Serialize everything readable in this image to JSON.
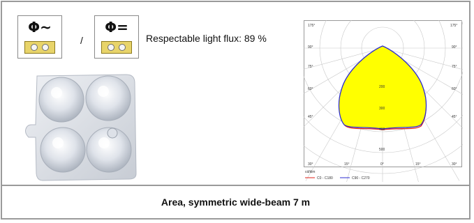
{
  "badges": [
    {
      "symbol": "Φ~",
      "icon": "ac-power-socket-icon"
    },
    {
      "symbol": "Φ=",
      "icon": "dc-power-socket-icon"
    }
  ],
  "separator": "/",
  "flux_text": "Respectable light flux: 89 %",
  "footer_label": "Area, symmetric wide-beam 7 m",
  "colors": {
    "fill": "#ffff00",
    "c0": "#e32219",
    "c90": "#2b2bd0",
    "border": "#9a9a9a"
  },
  "chart_data": {
    "type": "polar",
    "angle_labels_top": [
      "175°",
      "175°"
    ],
    "angle_labels_left": [
      "90°",
      "75°",
      "60°",
      "45°"
    ],
    "angle_labels_right": [
      "90°",
      "75°",
      "60°",
      "45°"
    ],
    "angle_labels_bottom": [
      "30°",
      "15°",
      "0°",
      "15°",
      "30°"
    ],
    "radial_labels": [
      "200",
      "300",
      "400",
      "500"
    ],
    "unit": "cd/klm",
    "series": [
      {
        "name": "C0 - C180",
        "color": "#e32219"
      },
      {
        "name": "C90 - C270",
        "color": "#2b2bd0"
      }
    ]
  }
}
